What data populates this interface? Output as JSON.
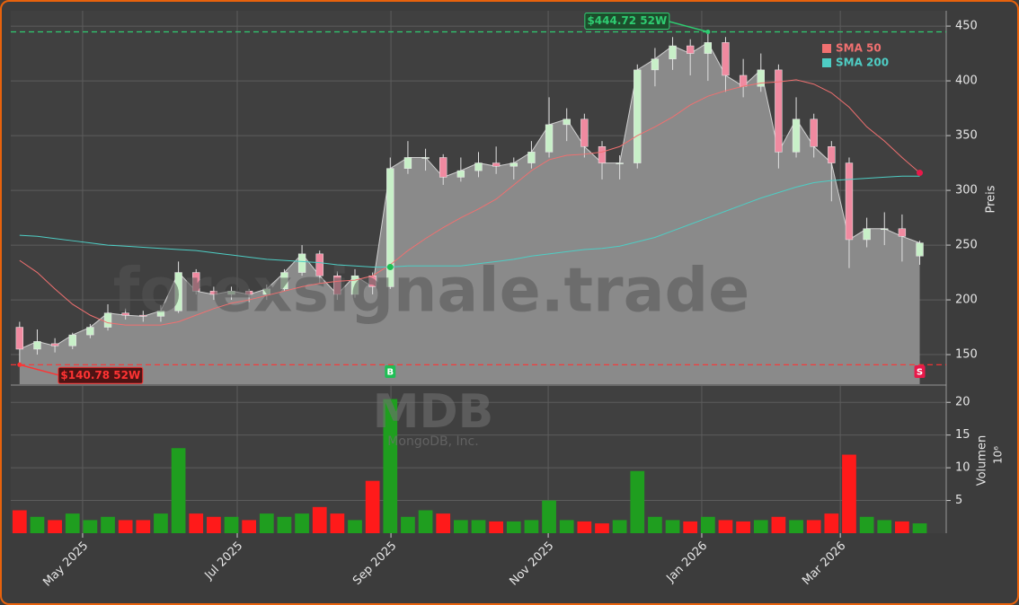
{
  "chart_data": {
    "type": "candlestick",
    "watermark": "forexsignale.trade",
    "symbol": "MDB",
    "company": "MongoDB, Inc.",
    "y_label": "Preis",
    "volume_label": "Volumen",
    "volume_scale": "10⁶",
    "categories": [
      null,
      null,
      null,
      null,
      null,
      null,
      null,
      null,
      null,
      null,
      null,
      null,
      null,
      null,
      null,
      null,
      null,
      null,
      null,
      null,
      null,
      null,
      null,
      null,
      null,
      null,
      null,
      null,
      null,
      null,
      null,
      null,
      null,
      null,
      null,
      null,
      null,
      null,
      null,
      null,
      null,
      null,
      null,
      null,
      null,
      null,
      null,
      null,
      null,
      null,
      null,
      null
    ],
    "open": [
      175,
      155,
      160,
      158,
      168,
      175,
      188,
      186,
      185,
      190,
      225,
      208,
      205,
      208,
      205,
      210,
      225,
      242,
      222,
      205,
      222,
      212,
      320,
      330,
      330,
      312,
      318,
      325,
      322,
      325,
      335,
      360,
      365,
      340,
      325,
      325,
      410,
      420,
      432,
      425,
      435,
      405,
      395,
      410,
      335,
      365,
      340,
      325,
      255,
      265,
      265,
      240
    ],
    "high": [
      180,
      173,
      165,
      170,
      178,
      196,
      192,
      190,
      195,
      235,
      228,
      212,
      212,
      210,
      214,
      228,
      250,
      245,
      226,
      228,
      225,
      330,
      345,
      338,
      333,
      330,
      335,
      340,
      330,
      345,
      385,
      375,
      370,
      345,
      332,
      415,
      430,
      440,
      438,
      444.72,
      440,
      420,
      425,
      415,
      385,
      370,
      345,
      330,
      275,
      280,
      278,
      254
    ],
    "low": [
      140.78,
      150,
      152,
      155,
      165,
      172,
      182,
      180,
      180,
      188,
      205,
      200,
      200,
      198,
      200,
      208,
      222,
      215,
      200,
      202,
      205,
      210,
      315,
      318,
      305,
      308,
      312,
      315,
      310,
      320,
      330,
      345,
      330,
      310,
      310,
      320,
      395,
      410,
      405,
      400,
      390,
      385,
      390,
      320,
      330,
      330,
      290,
      229,
      248,
      250,
      235,
      232
    ],
    "close": [
      155,
      162,
      158,
      168,
      175,
      188,
      186,
      185,
      190,
      225,
      208,
      205,
      208,
      205,
      210,
      225,
      242,
      222,
      205,
      222,
      212,
      320,
      330,
      330,
      312,
      318,
      325,
      322,
      325,
      335,
      360,
      365,
      340,
      325,
      325,
      410,
      420,
      432,
      425,
      435,
      405,
      395,
      410,
      335,
      365,
      340,
      325,
      255,
      265,
      265,
      258,
      252
    ],
    "volume": [
      3.5,
      2.5,
      2,
      3,
      2,
      2.5,
      2,
      2,
      3,
      13,
      3,
      2.5,
      2.5,
      2,
      3,
      2.5,
      3,
      4,
      3,
      2,
      8,
      20.5,
      2.5,
      3.5,
      3,
      2,
      2,
      1.8,
      1.8,
      2,
      5,
      2,
      1.8,
      1.5,
      2,
      9.5,
      2.5,
      2,
      1.8,
      2.5,
      2,
      1.8,
      2,
      2.5,
      2,
      2,
      3,
      12,
      2.5,
      2,
      1.8,
      1.5
    ],
    "up_color": "#1f9e1f",
    "down_color": "#ff1a1a",
    "area_color": "#8a8a8a",
    "sma": [
      {
        "name": "SMA 50",
        "color": "#f07070",
        "values": [
          236,
          225,
          210,
          196,
          186,
          179,
          177,
          177,
          177,
          180,
          186,
          192,
          197,
          200,
          204,
          208,
          212,
          215,
          217,
          218,
          222,
          232,
          245,
          256,
          266,
          275,
          283,
          292,
          305,
          318,
          328,
          332,
          333,
          335,
          340,
          350,
          358,
          367,
          378,
          386,
          391,
          395,
          398,
          399,
          401,
          397,
          389,
          376,
          358,
          345,
          330,
          316
        ]
      },
      {
        "name": "SMA 200",
        "color": "#4ecdc4",
        "values": [
          259,
          258,
          256,
          254,
          252,
          250,
          249,
          248,
          247,
          246,
          245,
          243,
          241,
          239,
          237,
          236,
          235,
          234,
          232,
          231,
          230,
          230,
          231,
          231,
          231,
          231,
          233,
          235,
          237,
          240,
          242,
          244,
          246,
          247,
          249,
          253,
          257,
          263,
          269,
          275,
          281,
          287,
          293,
          298,
          303,
          307,
          309,
          310,
          311,
          312,
          313,
          313
        ]
      }
    ],
    "extremes": [
      {
        "label": "$444.72 52W",
        "value": 444.72,
        "index": 39,
        "color": "#2ecc71"
      },
      {
        "label": "$140.78 52W",
        "value": 140.78,
        "index": 0,
        "color": "#ff3333"
      }
    ],
    "signals": [
      {
        "label": "B",
        "index": 21,
        "color": "#1fbf55",
        "line": 1
      },
      {
        "label": "S",
        "index": 51,
        "color": "#e8194a",
        "line": 0
      }
    ],
    "xlim": [
      -0.5,
      52.5
    ],
    "xticks": [
      {
        "value": 3.57,
        "label": "May 2025"
      },
      {
        "value": 12.33,
        "label": "Jul 2025"
      },
      {
        "value": 21.04,
        "label": "Sep 2025"
      },
      {
        "value": 29.95,
        "label": "Nov 2025"
      },
      {
        "value": 38.65,
        "label": "Jan 2026"
      },
      {
        "value": 46.5,
        "label": "Mar 2026"
      }
    ],
    "ylim": [
      123,
      464
    ],
    "yticks": [
      150,
      200,
      250,
      300,
      350,
      400,
      450
    ],
    "volume_ylim": [
      0,
      22.5
    ],
    "volume_yticks": [
      5,
      10,
      15,
      20
    ],
    "grid": true
  }
}
